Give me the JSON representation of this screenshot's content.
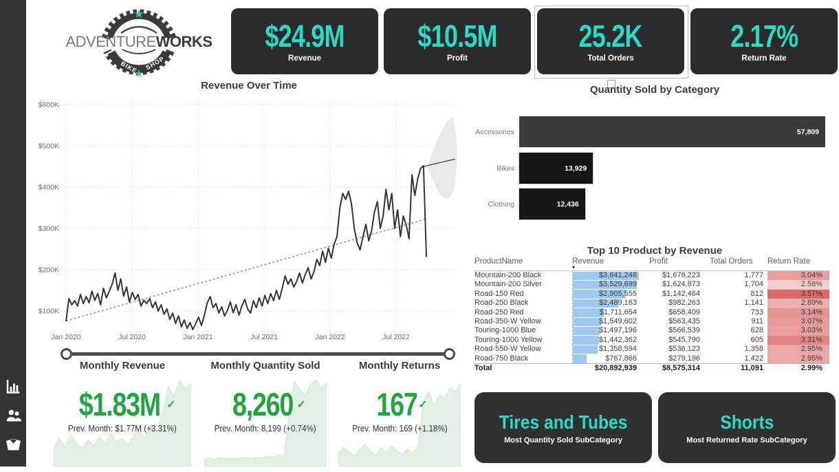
{
  "brand": {
    "name_light": "ADVENTURE",
    "name_bold": "WORKS",
    "badge_top": "BIKE",
    "badge_bottom": "SHOP"
  },
  "colors": {
    "teal": "#2ed8c6",
    "card_dark": "#2b2b2b",
    "green": "#22a53e",
    "spark_fill": "#e1f0e2",
    "spark_line": "#cde8cf",
    "bar_blue": "#9dc9f2",
    "red_low": "#f5cdcd",
    "red_high": "#d96868",
    "line": "#333333",
    "trend": "#999999",
    "forecast_band": "#e7e7e7",
    "sidebar": "#333333",
    "bar_dark": "#3b3b3b",
    "bar_black": "#161616"
  },
  "sidebar": {
    "icons": [
      {
        "name": "bar-chart-icon"
      },
      {
        "name": "people-icon"
      },
      {
        "name": "box-icon"
      }
    ]
  },
  "top_kpis": [
    {
      "value": "$24.9M",
      "label": "Revenue",
      "selected": false
    },
    {
      "value": "$10.5M",
      "label": "Profit",
      "selected": false
    },
    {
      "value": "25.2K",
      "label": "Total Orders",
      "selected": true
    },
    {
      "value": "2.17%",
      "label": "Return Rate",
      "selected": false
    }
  ],
  "chart_data": {
    "revenue_over_time": {
      "type": "line",
      "title": "Revenue Over Time",
      "y_ticks": [
        "$600K",
        "$500K",
        "$400K",
        "$300K",
        "$200K",
        "$100K"
      ],
      "y_tick_values_k": [
        600,
        500,
        400,
        300,
        200,
        100
      ],
      "x_ticks": [
        "Jan 2020",
        "Jul 2020",
        "Jan 2021",
        "Jul 2021",
        "Jan 2022",
        "Jul 2022"
      ],
      "ylim_k": [
        0,
        600
      ],
      "grid": "dotted",
      "values_k": [
        75,
        130,
        115,
        125,
        112,
        140,
        118,
        135,
        120,
        148,
        126,
        142,
        115,
        155,
        132,
        148,
        165,
        192,
        150,
        178,
        136,
        158,
        122,
        145,
        128,
        140,
        112,
        126,
        118,
        130,
        108,
        122,
        100,
        115,
        92,
        105,
        80,
        95,
        70,
        88,
        62,
        78,
        58,
        72,
        55,
        70,
        85,
        65,
        90,
        120,
        135,
        108,
        118,
        95,
        110,
        88,
        102,
        122,
        96,
        115,
        90,
        112,
        128,
        105,
        95,
        125,
        108,
        132,
        112,
        138,
        118,
        142,
        125,
        150,
        128,
        155,
        185,
        165,
        178,
        158,
        172,
        192,
        168,
        188,
        205,
        178,
        195,
        225,
        210,
        245,
        218,
        252,
        228,
        262,
        280,
        350,
        385,
        370,
        390,
        360,
        300,
        265,
        248,
        280,
        310,
        270,
        295,
        340,
        365,
        300,
        330,
        395,
        345,
        385,
        300,
        345,
        280,
        330,
        308,
        275,
        430,
        380,
        420,
        445,
        452,
        231
      ],
      "trend_k": {
        "start": 76,
        "end": 323
      },
      "forecast": {
        "line_start_k": 450,
        "line_end_k": 468,
        "band_top_k": 570,
        "band_bottom_k": 375
      }
    },
    "quantity_by_category": {
      "type": "bar",
      "title": "Quantity Sold by Category",
      "categories": [
        "Accessories",
        "Bikes",
        "Clothing"
      ],
      "values": [
        57809,
        13929,
        12436
      ],
      "labels": [
        "57,809",
        "13,929",
        "12,436"
      ]
    },
    "top_products": {
      "type": "table",
      "title": "Top 10 Product by Revenue",
      "columns": [
        "ProductName",
        "Revenue",
        "Profit",
        "Total Orders",
        "Return Rate"
      ],
      "sorted_by": "Revenue",
      "rows": [
        {
          "name": "Mountain-200 Black",
          "revenue": "$3,641,248",
          "profit": "$1,676,223",
          "orders": "1,777",
          "rate": "3.04%",
          "revenue_num": 3641248,
          "rate_num": 3.04
        },
        {
          "name": "Mountain-200 Silver",
          "revenue": "$3,529,699",
          "profit": "$1,624,873",
          "orders": "1,704",
          "rate": "2.58%",
          "revenue_num": 3529699,
          "rate_num": 2.58
        },
        {
          "name": "Road-150 Red",
          "revenue": "$2,905,555",
          "profit": "$1,142,464",
          "orders": "812",
          "rate": "3.57%",
          "revenue_num": 2905555,
          "rate_num": 3.57
        },
        {
          "name": "Road-250 Black",
          "revenue": "$2,489,163",
          "profit": "$982,263",
          "orders": "1,141",
          "rate": "2.89%",
          "revenue_num": 2489163,
          "rate_num": 2.89
        },
        {
          "name": "Road-250 Red",
          "revenue": "$1,711,654",
          "profit": "$658,409",
          "orders": "733",
          "rate": "3.14%",
          "revenue_num": 1711654,
          "rate_num": 3.14
        },
        {
          "name": "Road-350-W Yellow",
          "revenue": "$1,549,602",
          "profit": "$563,435",
          "orders": "911",
          "rate": "3.07%",
          "revenue_num": 1549602,
          "rate_num": 3.07
        },
        {
          "name": "Touring-1000 Blue",
          "revenue": "$1,497,196",
          "profit": "$566,539",
          "orders": "628",
          "rate": "3.03%",
          "revenue_num": 1497196,
          "rate_num": 3.03
        },
        {
          "name": "Touring-1000 Yellow",
          "revenue": "$1,442,362",
          "profit": "$545,790",
          "orders": "605",
          "rate": "3.31%",
          "revenue_num": 1442362,
          "rate_num": 3.31
        },
        {
          "name": "Road-550-W Yellow",
          "revenue": "$1,358,594",
          "profit": "$536,123",
          "orders": "1,358",
          "rate": "2.95%",
          "revenue_num": 1358594,
          "rate_num": 2.95
        },
        {
          "name": "Road-750 Black",
          "revenue": "$767,866",
          "profit": "$279,196",
          "orders": "1,422",
          "rate": "2.95%",
          "revenue_num": 767866,
          "rate_num": 2.95
        }
      ],
      "total": {
        "name": "Total",
        "revenue": "$20,892,939",
        "profit": "$8,575,314",
        "orders": "11,091",
        "rate": "2.99%"
      }
    }
  },
  "monthly_kpis": [
    {
      "title": "Monthly Revenue",
      "value": "$1.83M",
      "check": "✓",
      "prev": "Prev. Month: $1.77M (+3.31%)",
      "spark": [
        18,
        30,
        20,
        34,
        24,
        18,
        28,
        22,
        32,
        24,
        36,
        26,
        30,
        22,
        34,
        40,
        30,
        46,
        38,
        60,
        92,
        80,
        100,
        88,
        96
      ]
    },
    {
      "title": "Monthly Quantity Sold",
      "value": "8,260",
      "check": "✓",
      "prev": "Prev. Month: 8,199 (+0.74%)",
      "spark": [
        6,
        7,
        5,
        8,
        6,
        7,
        6,
        8,
        7,
        6,
        8,
        7,
        9,
        8,
        10,
        9,
        62,
        98,
        88,
        82,
        95,
        100,
        90,
        97
      ]
    },
    {
      "title": "Monthly Returns",
      "value": "167",
      "check": "✓",
      "prev": "Prev. Month: 169 (+1.18%)",
      "spark": [
        12,
        20,
        14,
        9,
        17,
        23,
        15,
        10,
        19,
        13,
        21,
        15,
        11,
        17,
        13,
        22,
        76,
        86,
        70,
        82,
        78,
        90,
        86,
        96
      ]
    }
  ],
  "subcategory_cards": [
    {
      "value": "Tires and Tubes",
      "label": "Most Quantity Sold SubCategory"
    },
    {
      "value": "Shorts",
      "label": "Most Returned Rate SubCategory"
    }
  ],
  "sort_icon": "▾"
}
